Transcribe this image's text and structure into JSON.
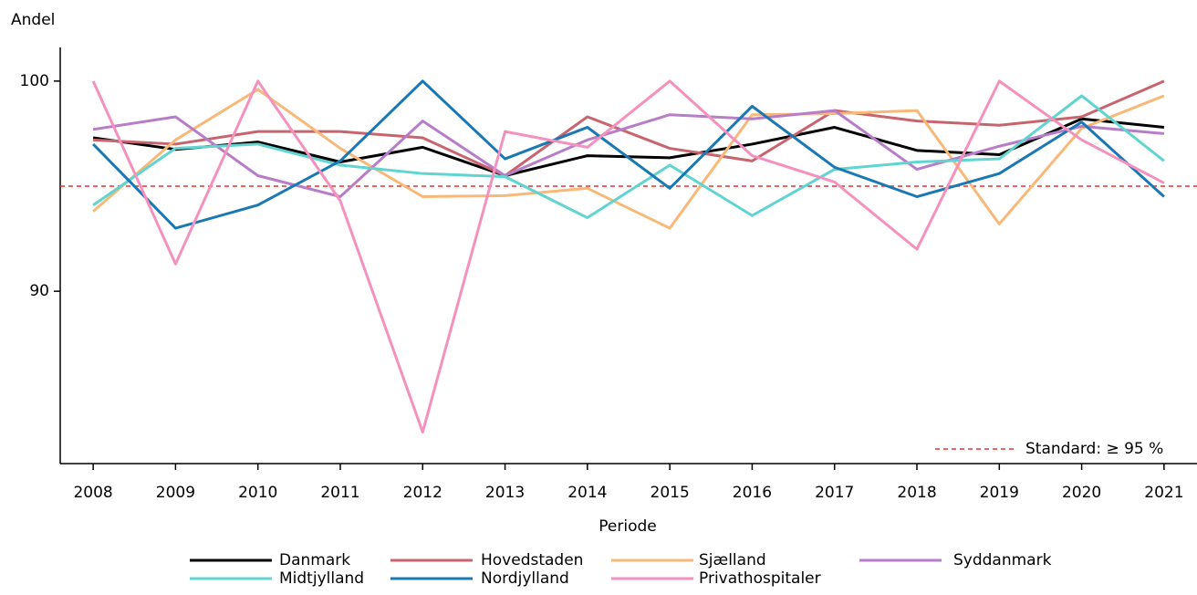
{
  "chart_data": {
    "type": "line",
    "y_label": "Andel",
    "x_label": "Periode",
    "x": [
      2008,
      2009,
      2010,
      2011,
      2012,
      2013,
      2014,
      2015,
      2016,
      2017,
      2018,
      2019,
      2020,
      2021
    ],
    "xlim": [
      2007.6,
      2021.4
    ],
    "xticks": [
      2008,
      2009,
      2010,
      2011,
      2012,
      2013,
      2014,
      2015,
      2016,
      2017,
      2018,
      2019,
      2020,
      2021
    ],
    "ylim": [
      81.8,
      101.6
    ],
    "yticks": [
      90,
      100
    ],
    "reference_line": {
      "value": 95,
      "label": "Standard: ≥ 95 %",
      "color": "#e8302f"
    },
    "series": [
      {
        "name": "Danmark",
        "color": "#000000",
        "values": [
          97.3,
          96.75,
          97.1,
          96.15,
          96.85,
          95.5,
          96.45,
          96.35,
          97.0,
          97.8,
          96.7,
          96.5,
          98.2,
          97.8
        ]
      },
      {
        "name": "Hovedstaden",
        "color": "#c8646e",
        "values": [
          97.2,
          97.0,
          97.6,
          97.6,
          97.3,
          95.5,
          98.3,
          96.8,
          96.2,
          98.6,
          98.1,
          97.9,
          98.3,
          100
        ]
      },
      {
        "name": "Sjælland",
        "color": "#f8b878",
        "values": [
          93.8,
          97.2,
          99.6,
          96.8,
          94.5,
          94.55,
          94.9,
          93.0,
          98.4,
          98.45,
          98.6,
          93.2,
          97.75,
          99.3
        ]
      },
      {
        "name": "Syddanmark",
        "color": "#b87dc8",
        "values": [
          97.7,
          98.3,
          95.5,
          94.5,
          98.1,
          95.5,
          97.2,
          98.4,
          98.2,
          98.6,
          95.8,
          96.9,
          97.85,
          97.5
        ]
      },
      {
        "name": "Midtjylland",
        "color": "#5fd4d0",
        "values": [
          94.1,
          96.8,
          97.0,
          96.0,
          95.6,
          95.45,
          93.5,
          96.0,
          93.6,
          95.8,
          96.15,
          96.3,
          99.3,
          96.2
        ]
      },
      {
        "name": "Nordjylland",
        "color": "#1a78b4",
        "values": [
          97.0,
          93.0,
          94.1,
          96.2,
          100,
          96.3,
          97.8,
          94.9,
          98.8,
          95.9,
          94.5,
          95.6,
          98.05,
          94.5
        ]
      },
      {
        "name": "Privathospitaler",
        "color": "#f591bd",
        "values": [
          100,
          91.3,
          100,
          94.3,
          83.3,
          97.6,
          96.85,
          100,
          96.45,
          95.2,
          92.0,
          100,
          97.2,
          95.15
        ]
      }
    ]
  }
}
